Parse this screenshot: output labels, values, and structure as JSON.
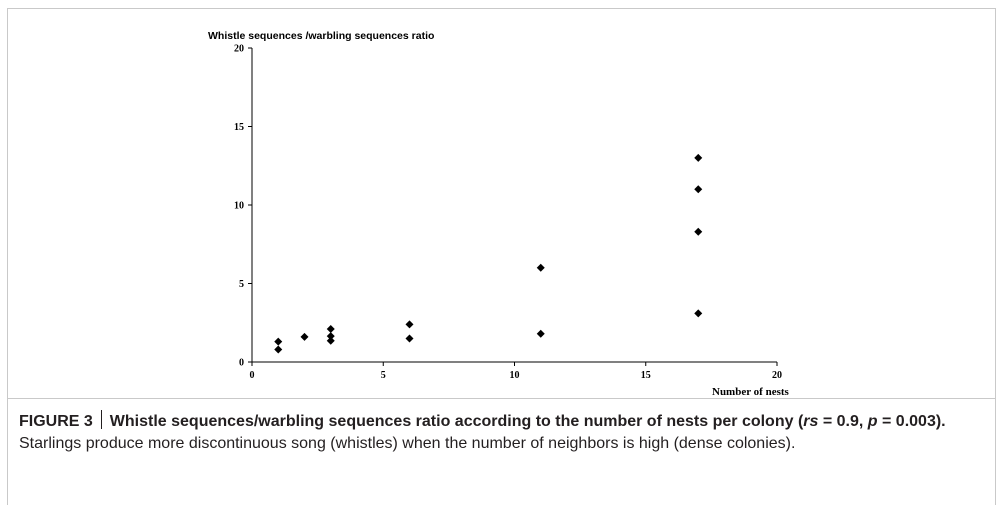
{
  "figure": {
    "label": "FIGURE 3",
    "title": "Whistle sequences/warbling sequences ratio according to the number of nests per colony",
    "stat_open": "(",
    "stat_rs_sym": "rs",
    "stat_rs_val": " = 0.9, ",
    "stat_p_sym": "p",
    "stat_p_val": " = 0.003).",
    "description": " Starlings produce more discontinuous song (whistles) when the number of neighbors is high (dense colonies)."
  },
  "chart_data": {
    "type": "scatter",
    "title": "",
    "ylabel": "Whistle sequences /warbling sequences ratio",
    "xlabel": "Number of nests",
    "xlim": [
      0,
      20
    ],
    "ylim": [
      0,
      20
    ],
    "xticks": [
      0,
      5,
      10,
      15,
      20
    ],
    "yticks": [
      0,
      5,
      10,
      15,
      20
    ],
    "xtick_labels": [
      "0",
      "5",
      "10",
      "15",
      "20"
    ],
    "ytick_labels": [
      "0",
      "5",
      "10",
      "15",
      "20"
    ],
    "grid": false,
    "marker": "diamond",
    "marker_color": "#000000",
    "points": [
      {
        "x": 1,
        "y": 0.8
      },
      {
        "x": 1,
        "y": 1.3
      },
      {
        "x": 2,
        "y": 1.6
      },
      {
        "x": 3,
        "y": 1.35
      },
      {
        "x": 3,
        "y": 1.65
      },
      {
        "x": 3,
        "y": 2.1
      },
      {
        "x": 6,
        "y": 1.5
      },
      {
        "x": 6,
        "y": 2.4
      },
      {
        "x": 11,
        "y": 1.8
      },
      {
        "x": 11,
        "y": 6.0
      },
      {
        "x": 17,
        "y": 3.1
      },
      {
        "x": 17,
        "y": 8.3
      },
      {
        "x": 17,
        "y": 11.0
      },
      {
        "x": 17,
        "y": 13.0
      }
    ]
  }
}
